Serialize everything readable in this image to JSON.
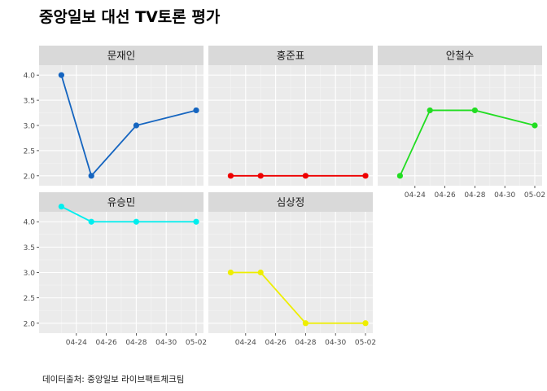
{
  "title": "중앙일보 대선 TV토론 평가",
  "caption": "데이터출처: 중앙일보 라이브팩트체크팀",
  "chart_data": {
    "type": "line",
    "title": "중앙일보 대선 TV토론 평가",
    "caption": "데이터출처: 중앙일보 라이브팩트체크팀",
    "x": [
      "04-23",
      "04-25",
      "04-28",
      "05-02"
    ],
    "x_ticks": [
      "04-24",
      "04-26",
      "04-28",
      "04-30",
      "05-02"
    ],
    "y_ticks": [
      "2.0",
      "2.5",
      "3.0",
      "3.5",
      "4.0"
    ],
    "ylim": [
      1.9,
      4.1
    ],
    "xlim_days": [
      "04-22",
      "05-02"
    ],
    "facet_layout": "3 columns, 2 rows",
    "grid": true,
    "panels": [
      {
        "name": "문재인",
        "color": "#1565C0",
        "values": [
          4.0,
          2.0,
          3.0,
          3.3
        ]
      },
      {
        "name": "홍준표",
        "color": "#EE0000",
        "values": [
          2.0,
          2.0,
          2.0,
          2.0
        ]
      },
      {
        "name": "안철수",
        "color": "#22DD22",
        "values": [
          2.0,
          3.3,
          3.3,
          3.0
        ]
      },
      {
        "name": "유승민",
        "color": "#00EEEE",
        "values": [
          4.3,
          4.0,
          4.0,
          4.0
        ]
      },
      {
        "name": "심상정",
        "color": "#EEEE00",
        "values": [
          3.0,
          3.0,
          2.0,
          2.0
        ]
      }
    ]
  }
}
